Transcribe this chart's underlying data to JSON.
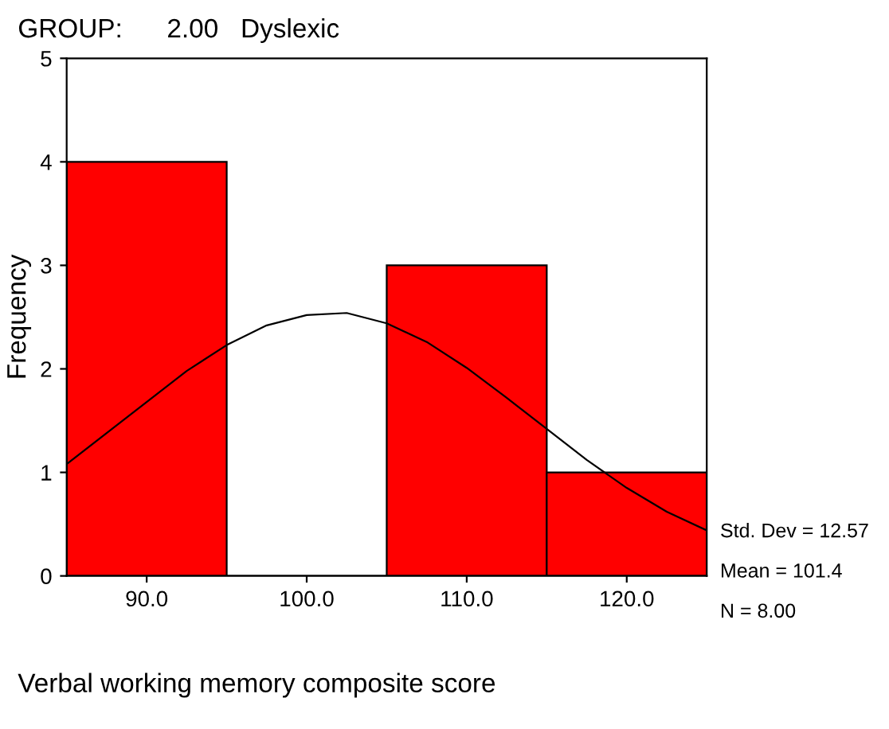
{
  "chart_data": {
    "type": "histogram",
    "title": "GROUP:      2.00   Dyslexic",
    "xlabel": "Verbal working memory composite score",
    "ylabel": "Frequency",
    "series": [
      {
        "bins": [
          85,
          95,
          105,
          115,
          125
        ],
        "values": [
          4,
          0,
          3,
          1
        ],
        "color": "#ff0000"
      },
      {
        "type": "line",
        "x": [
          85,
          87.5,
          90,
          92.5,
          95,
          97.5,
          100,
          102.5,
          105,
          107.5,
          110,
          112.5,
          115,
          117.5,
          120,
          122.5,
          125
        ],
        "values": [
          1.08,
          1.38,
          1.68,
          1.98,
          2.23,
          2.42,
          2.52,
          2.54,
          2.44,
          2.26,
          2.01,
          1.72,
          1.42,
          1.12,
          0.85,
          0.62,
          0.44
        ],
        "color": "#000000"
      }
    ],
    "xlim": [
      85,
      125
    ],
    "xticks": [
      {
        "value": 90,
        "label": "90.0"
      },
      {
        "value": 100,
        "label": "100.0"
      },
      {
        "value": 110,
        "label": "110.0"
      },
      {
        "value": 120,
        "label": "120.0"
      }
    ],
    "ylim": [
      0,
      5
    ],
    "yticks": [
      0,
      1,
      2,
      3,
      4,
      5
    ],
    "grid": false,
    "legend": false,
    "annotations": [
      "Std. Dev = 12.57",
      "Mean = 101.4",
      "N = 8.00"
    ]
  }
}
